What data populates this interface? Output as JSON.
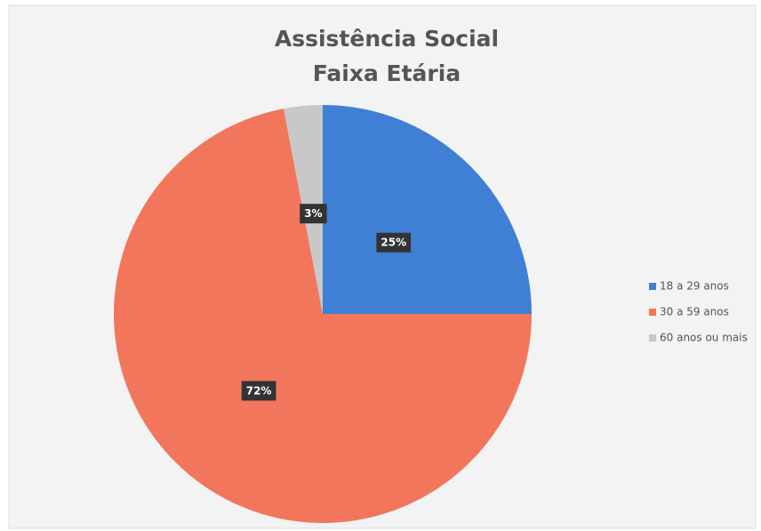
{
  "chart_data": {
    "type": "pie",
    "title": "Assistência Social",
    "subtitle": "Faixa Etária",
    "categories": [
      "18 a 29 anos",
      "30 a 59 anos",
      "60 anos ou mais"
    ],
    "values": [
      25,
      72,
      3
    ],
    "value_labels": [
      "25%",
      "72%",
      "3%"
    ],
    "colors": [
      "#3f7fd4",
      "#f2765c",
      "#c8c8c8"
    ],
    "legend": "right"
  }
}
